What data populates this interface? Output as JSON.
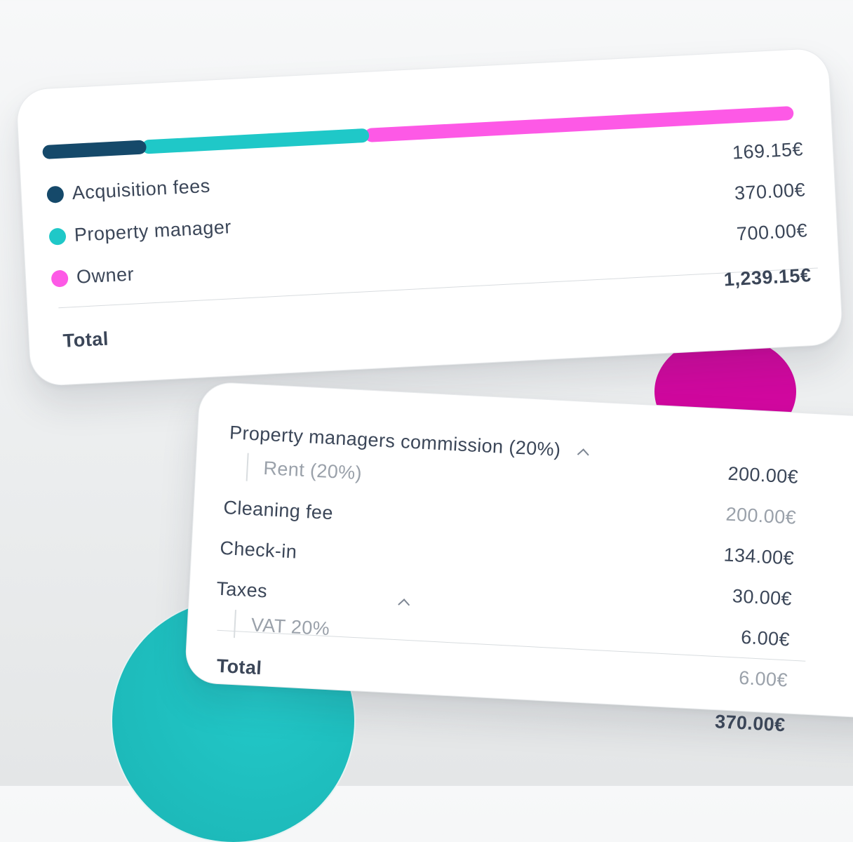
{
  "colors": {
    "acquisition": "#15496a",
    "property_manager": "#1fc8c8",
    "owner": "#fd59e6",
    "blob_magenta": "#d1089f",
    "blob_teal": "#1fc2c2"
  },
  "breakdown_card": {
    "bar_segments": [
      {
        "name": "Acquisition fees",
        "share": 0.1365
      },
      {
        "name": "Property manager",
        "share": 0.2986
      },
      {
        "name": "Owner",
        "share": 0.5649
      }
    ],
    "legend": [
      {
        "label": "Acquisition fees",
        "amount": "169.15€"
      },
      {
        "label": "Property manager",
        "amount": "370.00€"
      },
      {
        "label": "Owner",
        "amount": "700.00€"
      }
    ],
    "total_label": "Total",
    "total_amount": "1,239.15€"
  },
  "commission_card": {
    "pm_commission_label": "Property managers commission (20%)",
    "pm_commission_amount": "200.00€",
    "rent_label": "Rent (20%)",
    "rent_amount": "200.00€",
    "cleaning_label": "Cleaning fee",
    "cleaning_amount": "134.00€",
    "checkin_label": "Check-in",
    "checkin_amount": "30.00€",
    "taxes_label": "Taxes",
    "taxes_amount": "6.00€",
    "vat_label": "VAT 20%",
    "vat_amount": "6.00€",
    "total_label": "Total",
    "total_amount": "370.00€"
  }
}
